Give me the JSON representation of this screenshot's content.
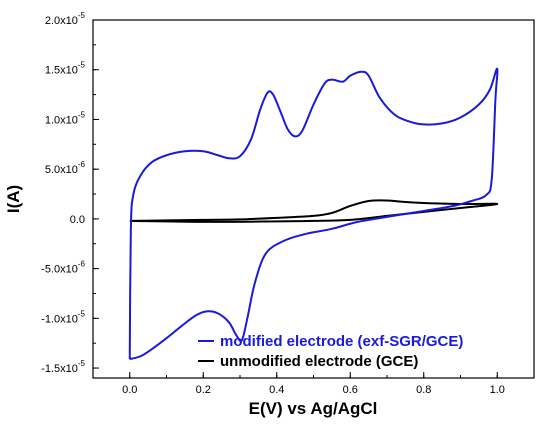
{
  "chart_data": {
    "type": "line",
    "xlabel": "E(V) vs Ag/AgCl",
    "ylabel": "I(A)",
    "xlim": [
      -0.1,
      1.1
    ],
    "ylim": [
      -1.6e-05,
      2e-05
    ],
    "x_ticks": [
      {
        "value": 0.0,
        "label": "0.0"
      },
      {
        "value": 0.2,
        "label": "0.2"
      },
      {
        "value": 0.4,
        "label": "0.4"
      },
      {
        "value": 0.6,
        "label": "0.6"
      },
      {
        "value": 0.8,
        "label": "0.8"
      },
      {
        "value": 1.0,
        "label": "1.0"
      }
    ],
    "y_ticks": [
      {
        "value": 2e-05,
        "mant": "2.0x10",
        "exp": "-5"
      },
      {
        "value": 1.5e-05,
        "mant": "1.5x10",
        "exp": "-5"
      },
      {
        "value": 1e-05,
        "mant": "1.0x10",
        "exp": "-5"
      },
      {
        "value": 5e-06,
        "mant": "5.0x10",
        "exp": "-6"
      },
      {
        "value": 0.0,
        "mant": "0.0",
        "exp": ""
      },
      {
        "value": -5e-06,
        "mant": "-5.0x10",
        "exp": "-6"
      },
      {
        "value": -1e-05,
        "mant": "-1.0x10",
        "exp": "-5"
      },
      {
        "value": -1.5e-05,
        "mant": "-1.5x10",
        "exp": "-5"
      }
    ],
    "legend_position": "bottom-right",
    "series": [
      {
        "name": "modified electrode (exf-SGR/GCE)",
        "color": "#1a1adb",
        "points": [
          [
            0.0,
            -1.41e-05
          ],
          [
            0.003,
            -1e-06
          ],
          [
            0.01,
            2.5e-06
          ],
          [
            0.03,
            4.4e-06
          ],
          [
            0.06,
            5.7e-06
          ],
          [
            0.1,
            6.4e-06
          ],
          [
            0.15,
            6.8e-06
          ],
          [
            0.2,
            6.8e-06
          ],
          [
            0.24,
            6.4e-06
          ],
          [
            0.27,
            6.1e-06
          ],
          [
            0.3,
            6.3e-06
          ],
          [
            0.33,
            8e-06
          ],
          [
            0.355,
            1.1e-05
          ],
          [
            0.375,
            1.27e-05
          ],
          [
            0.39,
            1.25e-05
          ],
          [
            0.41,
            1.08e-05
          ],
          [
            0.43,
            9e-06
          ],
          [
            0.45,
            8.3e-06
          ],
          [
            0.47,
            8.9e-06
          ],
          [
            0.5,
            1.15e-05
          ],
          [
            0.53,
            1.36e-05
          ],
          [
            0.55,
            1.4e-05
          ],
          [
            0.58,
            1.38e-05
          ],
          [
            0.6,
            1.44e-05
          ],
          [
            0.63,
            1.48e-05
          ],
          [
            0.65,
            1.44e-05
          ],
          [
            0.68,
            1.22e-05
          ],
          [
            0.72,
            1.05e-05
          ],
          [
            0.76,
            9.8e-06
          ],
          [
            0.8,
            9.5e-06
          ],
          [
            0.85,
            9.6e-06
          ],
          [
            0.9,
            1.02e-05
          ],
          [
            0.95,
            1.15e-05
          ],
          [
            0.98,
            1.3e-05
          ],
          [
            1.0,
            1.51e-05
          ],
          [
            0.995,
            1.2e-05
          ],
          [
            0.985,
            4e-06
          ],
          [
            0.97,
            2.4e-06
          ],
          [
            0.93,
            1.8e-06
          ],
          [
            0.88,
            1.3e-06
          ],
          [
            0.8,
            8e-07
          ],
          [
            0.7,
            2e-07
          ],
          [
            0.62,
            -3e-07
          ],
          [
            0.55,
            -1e-06
          ],
          [
            0.48,
            -1.5e-06
          ],
          [
            0.42,
            -2.2e-06
          ],
          [
            0.37,
            -3.5e-06
          ],
          [
            0.34,
            -6.5e-06
          ],
          [
            0.32,
            -1e-05
          ],
          [
            0.305,
            -1.22e-05
          ],
          [
            0.29,
            -1.17e-05
          ],
          [
            0.27,
            -1.04e-05
          ],
          [
            0.24,
            -9.5e-06
          ],
          [
            0.21,
            -9.3e-06
          ],
          [
            0.18,
            -9.7e-06
          ],
          [
            0.14,
            -1.08e-05
          ],
          [
            0.1,
            -1.2e-05
          ],
          [
            0.06,
            -1.31e-05
          ],
          [
            0.03,
            -1.38e-05
          ],
          [
            0.0,
            -1.41e-05
          ]
        ]
      },
      {
        "name": "unmodified electrode (GCE)",
        "color": "#000000",
        "points": [
          [
            0.0,
            -2e-07
          ],
          [
            0.1,
            -1.5e-07
          ],
          [
            0.2,
            -1e-07
          ],
          [
            0.3,
            -5e-08
          ],
          [
            0.4,
            1e-07
          ],
          [
            0.5,
            3e-07
          ],
          [
            0.55,
            6e-07
          ],
          [
            0.6,
            1.3e-06
          ],
          [
            0.65,
            1.8e-06
          ],
          [
            0.7,
            1.85e-06
          ],
          [
            0.75,
            1.7e-06
          ],
          [
            0.8,
            1.6e-06
          ],
          [
            0.9,
            1.5e-06
          ],
          [
            1.0,
            1.5e-06
          ],
          [
            0.9,
            1.1e-06
          ],
          [
            0.8,
            7e-07
          ],
          [
            0.7,
            3e-07
          ],
          [
            0.6,
            -1e-07
          ],
          [
            0.5,
            -2e-07
          ],
          [
            0.4,
            -2.5e-07
          ],
          [
            0.2,
            -3e-07
          ],
          [
            0.0,
            -2e-07
          ]
        ]
      }
    ]
  }
}
